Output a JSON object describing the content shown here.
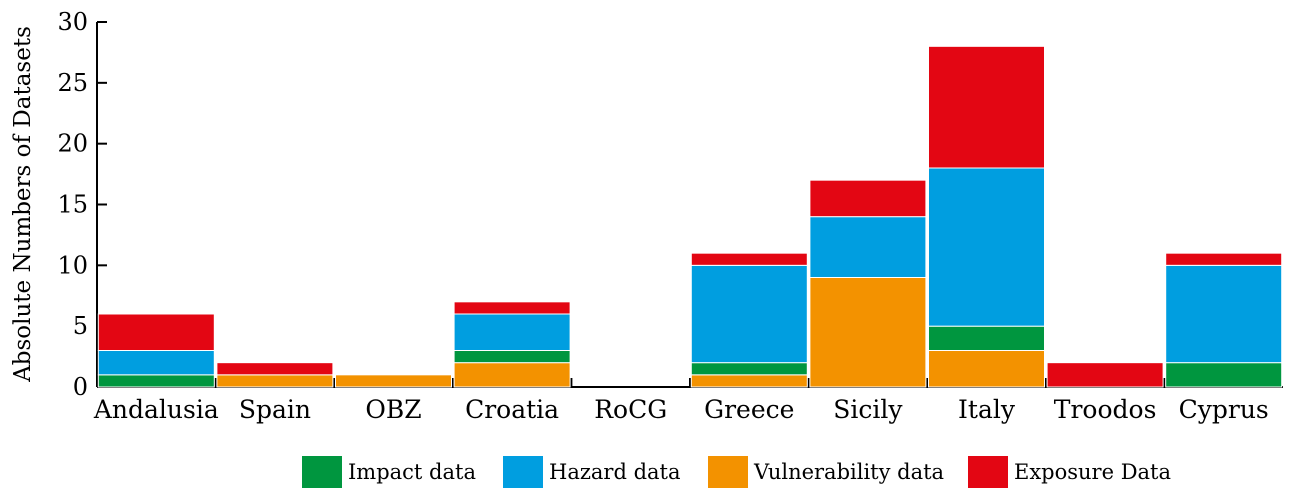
{
  "chart_data": {
    "type": "bar",
    "stacked": true,
    "ylabel": "Absolute Numbers of Datasets",
    "xlabel": "",
    "ylim": [
      0,
      30
    ],
    "yticks": [
      0,
      5,
      10,
      15,
      20,
      25,
      30
    ],
    "grid": false,
    "legend_position": "bottom",
    "categories": [
      "Andalusia",
      "Spain",
      "OBZ",
      "Croatia",
      "RoCG",
      "Greece",
      "Sicily",
      "Italy",
      "Troodos",
      "Cyprus"
    ],
    "series": [
      {
        "name": "Impact data",
        "color": "#00963f",
        "values": [
          1,
          0,
          0,
          1,
          0,
          1,
          0,
          2,
          0,
          2
        ]
      },
      {
        "name": "Hazard data",
        "color": "#009ee0",
        "values": [
          2,
          0,
          0,
          3,
          0,
          8,
          5,
          13,
          0,
          8
        ]
      },
      {
        "name": "Vulnerability data",
        "color": "#f39200",
        "values": [
          0,
          1,
          1,
          2,
          0,
          1,
          9,
          3,
          0,
          0
        ]
      },
      {
        "name": "Exposure Data",
        "color": "#e30613",
        "values": [
          3,
          1,
          0,
          1,
          0,
          1,
          3,
          10,
          2,
          1
        ]
      }
    ],
    "stack_order_bottom_to_top": [
      [
        "Impact data",
        "Vulnerability data",
        "Hazard data",
        "Exposure Data"
      ],
      [
        "Vulnerability data",
        "Exposure Data"
      ],
      [
        "Vulnerability data"
      ],
      [
        "Vulnerability data",
        "Impact data",
        "Hazard data",
        "Exposure Data"
      ],
      [],
      [
        "Vulnerability data",
        "Impact data",
        "Hazard data",
        "Exposure Data"
      ],
      [
        "Vulnerability data",
        "Hazard data",
        "Exposure Data"
      ],
      [
        "Vulnerability data",
        "Impact data",
        "Hazard data",
        "Exposure Data"
      ],
      [
        "Exposure Data"
      ],
      [
        "Impact data",
        "Hazard data",
        "Exposure Data"
      ]
    ],
    "legend_order": [
      "Impact data",
      "Hazard data",
      "Vulnerability data",
      "Exposure Data"
    ]
  }
}
